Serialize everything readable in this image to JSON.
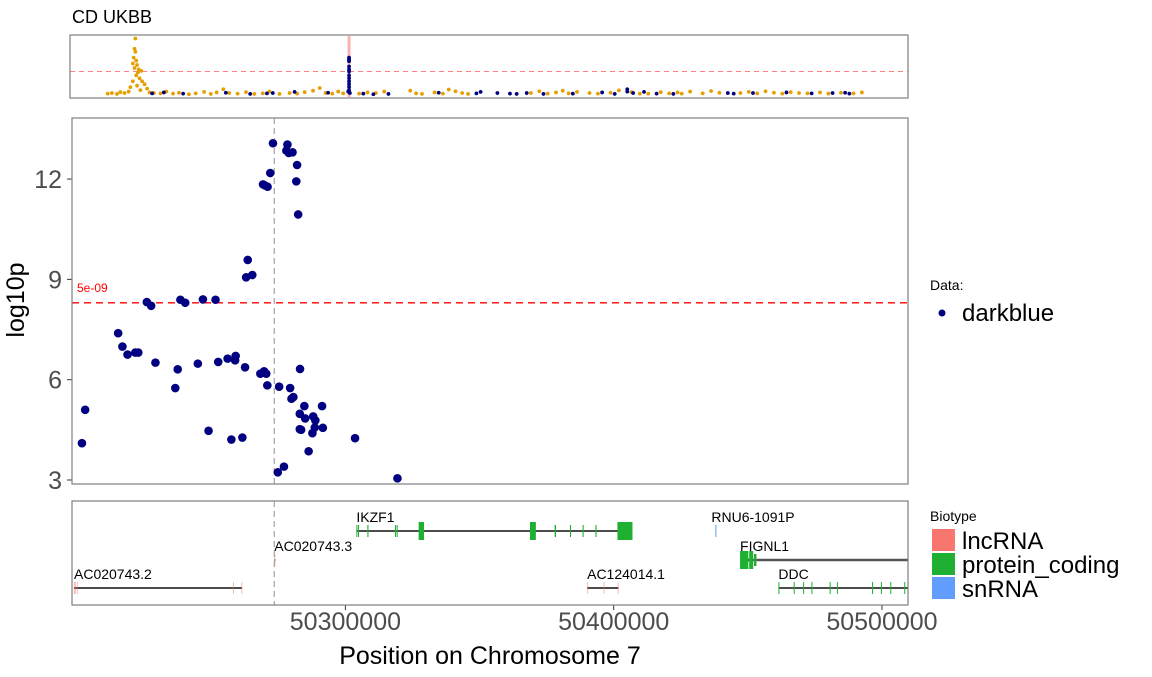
{
  "chart_data": [
    {
      "type": "scatter",
      "panel": "overview",
      "title": "CD UKBB",
      "xlabel": "",
      "ylabel": "",
      "x_units": "relative position index (0-100)",
      "xlim": [
        0,
        100
      ],
      "ylim": [
        0,
        20
      ],
      "threshold": 8.3,
      "highlight_x": 33.3,
      "series": [
        {
          "name": "orange",
          "color": "#E69F00",
          "points": [
            [
              7.8,
              19.5
            ],
            [
              7.7,
              16
            ],
            [
              7.8,
              15
            ],
            [
              7.6,
              13
            ],
            [
              7.9,
              12
            ],
            [
              7.5,
              11
            ],
            [
              8.0,
              10.5
            ],
            [
              7.7,
              9.5
            ],
            [
              8.2,
              9
            ],
            [
              8.5,
              8.5
            ],
            [
              8.1,
              8
            ],
            [
              7.9,
              7
            ],
            [
              8.3,
              6
            ],
            [
              8.6,
              5
            ],
            [
              7.5,
              5
            ],
            [
              8.9,
              4
            ],
            [
              8.0,
              3.5
            ],
            [
              7.2,
              3
            ],
            [
              9.2,
              2.5
            ],
            [
              8.4,
              2
            ],
            [
              7.0,
              1.5
            ],
            [
              6.5,
              1
            ],
            [
              9.5,
              1.2
            ],
            [
              10,
              1
            ],
            [
              4.5,
              0.8
            ],
            [
              5,
              1
            ],
            [
              5.6,
              0.7
            ],
            [
              6,
              1.3
            ],
            [
              10.8,
              0.9
            ],
            [
              11.5,
              1.5
            ],
            [
              12.3,
              0.8
            ],
            [
              13,
              1.1
            ],
            [
              14.2,
              0.6
            ],
            [
              15,
              0.9
            ],
            [
              16,
              1.4
            ],
            [
              16.8,
              0.7
            ],
            [
              17.5,
              1.2
            ],
            [
              18.3,
              2.3
            ],
            [
              19,
              1
            ],
            [
              20,
              0.8
            ],
            [
              21,
              1.3
            ],
            [
              22,
              0.7
            ],
            [
              23,
              0.9
            ],
            [
              23.8,
              1.5
            ],
            [
              25,
              0.7
            ],
            [
              26.2,
              1
            ],
            [
              27.1,
              0.8
            ],
            [
              28,
              1.3
            ],
            [
              29,
              1.8
            ],
            [
              29.8,
              2.7
            ],
            [
              30.5,
              1
            ],
            [
              31.3,
              0.8
            ],
            [
              32,
              1.5
            ],
            [
              32.6,
              0.9
            ],
            [
              34.5,
              0.8
            ],
            [
              35.5,
              1.2
            ],
            [
              36.5,
              1
            ],
            [
              37.5,
              1.5
            ],
            [
              40.6,
              1.8
            ],
            [
              41.3,
              0.9
            ],
            [
              42,
              0.7
            ],
            [
              43.5,
              1.2
            ],
            [
              44.5,
              0.8
            ],
            [
              45.2,
              2.2
            ],
            [
              46,
              1.6
            ],
            [
              46.8,
              1
            ],
            [
              47.5,
              0.7
            ],
            [
              55,
              1
            ],
            [
              56,
              1.6
            ],
            [
              57,
              0.8
            ],
            [
              58,
              1.2
            ],
            [
              58.8,
              1.8
            ],
            [
              59.5,
              0.9
            ],
            [
              60.5,
              1.4
            ],
            [
              62,
              1
            ],
            [
              63,
              0.8
            ],
            [
              64.5,
              1.1
            ],
            [
              65.5,
              1.9
            ],
            [
              67,
              1.3
            ],
            [
              68,
              0.8
            ],
            [
              69,
              0.8
            ],
            [
              70.5,
              1.3
            ],
            [
              71.5,
              0.9
            ],
            [
              72.5,
              1.2
            ],
            [
              73,
              0.8
            ],
            [
              74,
              1.5
            ],
            [
              75.5,
              0.9
            ],
            [
              76.5,
              1.7
            ],
            [
              77.5,
              1.1
            ],
            [
              80,
              1
            ],
            [
              81,
              1.4
            ],
            [
              82,
              0.9
            ],
            [
              83,
              1.6
            ],
            [
              84,
              1.1
            ],
            [
              85,
              0.8
            ],
            [
              86,
              1.3
            ],
            [
              87,
              1
            ],
            [
              88,
              0.9
            ],
            [
              89.5,
              1.2
            ],
            [
              90.5,
              0.8
            ],
            [
              92,
              1.1
            ],
            [
              93.5,
              0.9
            ],
            [
              94.5,
              1.2
            ]
          ]
        },
        {
          "name": "darkblue",
          "color": "#000080",
          "points": [
            [
              33.3,
              13
            ],
            [
              33.3,
              12.5
            ],
            [
              33.3,
              12
            ],
            [
              33.3,
              11.8
            ],
            [
              33.3,
              10
            ],
            [
              33.3,
              9
            ],
            [
              33.3,
              8.3
            ],
            [
              33.3,
              7
            ],
            [
              33.3,
              6
            ],
            [
              33.3,
              5
            ],
            [
              33.3,
              4
            ],
            [
              33.3,
              3
            ],
            [
              33.3,
              2
            ],
            [
              33.2,
              1.5
            ],
            [
              33.4,
              1
            ],
            [
              9.8,
              0.9
            ],
            [
              11.2,
              1.2
            ],
            [
              13.5,
              0.8
            ],
            [
              18.6,
              1.1
            ],
            [
              21.5,
              0.7
            ],
            [
              23.5,
              0.9
            ],
            [
              24.2,
              1
            ],
            [
              26.8,
              1.4
            ],
            [
              30.8,
              1.1
            ],
            [
              35,
              0.8
            ],
            [
              36.2,
              0.6
            ],
            [
              38,
              0.7
            ],
            [
              44,
              1.1
            ],
            [
              48.5,
              0.9
            ],
            [
              49,
              1.4
            ],
            [
              51,
              1
            ],
            [
              52.5,
              0.8
            ],
            [
              53.3,
              0.7
            ],
            [
              54.5,
              1
            ],
            [
              56.5,
              0.7
            ],
            [
              60,
              0.8
            ],
            [
              63.5,
              1.2
            ],
            [
              65,
              0.7
            ],
            [
              66.5,
              2.3
            ],
            [
              66.5,
              1.5
            ],
            [
              67.2,
              1
            ],
            [
              68.5,
              1.4
            ],
            [
              70,
              0.8
            ],
            [
              72,
              0.7
            ],
            [
              78.5,
              1
            ],
            [
              79.2,
              0.8
            ],
            [
              81.5,
              1
            ],
            [
              85.5,
              1.2
            ],
            [
              88.5,
              0.9
            ],
            [
              91,
              1
            ],
            [
              92.5,
              1.1
            ],
            [
              93,
              0.8
            ]
          ]
        }
      ]
    },
    {
      "type": "scatter",
      "panel": "main",
      "xlabel": "Position on Chromosome 7",
      "ylabel": "log10p",
      "xlim": [
        50198100,
        50509700
      ],
      "ylim": [
        2.88,
        13.8
      ],
      "yticks": [
        "3",
        "6",
        "9",
        "12"
      ],
      "ytick_values": [
        3,
        6,
        9,
        12
      ],
      "xticks": [
        "50300000",
        "50400000",
        "50500000"
      ],
      "xtick_values": [
        50300000,
        50400000,
        50500000
      ],
      "threshold": {
        "value": 8.3,
        "label": "5e-09",
        "color": "#FF0000"
      },
      "lead_snp_position": 50273500,
      "color": "#000080",
      "points": [
        [
          50273000,
          13.07
        ],
        [
          50278400,
          13.03
        ],
        [
          50278000,
          12.85
        ],
        [
          50278900,
          12.78
        ],
        [
          50280300,
          12.8
        ],
        [
          50282000,
          12.42
        ],
        [
          50272000,
          12.18
        ],
        [
          50269300,
          11.84
        ],
        [
          50270000,
          11.81
        ],
        [
          50271000,
          11.77
        ],
        [
          50281700,
          11.93
        ],
        [
          50282400,
          10.94
        ],
        [
          50263600,
          9.58
        ],
        [
          50263000,
          9.06
        ],
        [
          50265300,
          9.13
        ],
        [
          50226000,
          8.32
        ],
        [
          50227600,
          8.21
        ],
        [
          50238500,
          8.39
        ],
        [
          50240300,
          8.3
        ],
        [
          50246900,
          8.4
        ],
        [
          50251600,
          8.39
        ],
        [
          50215300,
          7.39
        ],
        [
          50216900,
          6.99
        ],
        [
          50218800,
          6.75
        ],
        [
          50221700,
          6.81
        ],
        [
          50222800,
          6.81
        ],
        [
          50229200,
          6.51
        ],
        [
          50237500,
          6.31
        ],
        [
          50245000,
          6.48
        ],
        [
          50252600,
          6.53
        ],
        [
          50256100,
          6.63
        ],
        [
          50259100,
          6.71
        ],
        [
          50258900,
          6.58
        ],
        [
          50262600,
          6.37
        ],
        [
          50268300,
          6.18
        ],
        [
          50269700,
          6.25
        ],
        [
          50270500,
          6.18
        ],
        [
          50270900,
          5.83
        ],
        [
          50275300,
          5.79
        ],
        [
          50279400,
          5.75
        ],
        [
          50279900,
          5.43
        ],
        [
          50280600,
          5.48
        ],
        [
          50283100,
          6.32
        ],
        [
          50284700,
          5.21
        ],
        [
          50291300,
          5.21
        ],
        [
          50283000,
          4.98
        ],
        [
          50285000,
          4.84
        ],
        [
          50288000,
          4.9
        ],
        [
          50288800,
          4.78
        ],
        [
          50288600,
          4.57
        ],
        [
          50291600,
          4.56
        ],
        [
          50283000,
          4.52
        ],
        [
          50283500,
          4.5
        ],
        [
          50287700,
          4.4
        ],
        [
          50236600,
          5.75
        ],
        [
          50203000,
          5.1
        ],
        [
          50201800,
          4.1
        ],
        [
          50249000,
          4.47
        ],
        [
          50257500,
          4.21
        ],
        [
          50261600,
          4.27
        ],
        [
          50286300,
          3.86
        ],
        [
          50303600,
          4.25
        ],
        [
          50277100,
          3.4
        ],
        [
          50274800,
          3.23
        ],
        [
          50319400,
          3.05
        ]
      ]
    }
  ],
  "legend_data": {
    "title": "Data:",
    "items": [
      {
        "label": "darkblue",
        "color": "#000080"
      }
    ]
  },
  "legend_biotype": {
    "title": "Biotype",
    "items": [
      {
        "label": "lncRNA",
        "color": "#F8766D"
      },
      {
        "label": "protein_coding",
        "color": "#1FB032"
      },
      {
        "label": "snRNA",
        "color": "#619CFF"
      }
    ]
  },
  "genes": [
    {
      "name": "AC020743.2",
      "biotype": "lncRNA",
      "row": 3,
      "start": 50198800,
      "end": 50261500,
      "exons": [
        [
          50198800,
          50199500
        ],
        [
          50199900,
          50200200
        ],
        [
          50258100,
          50258400
        ],
        [
          50261200,
          50261500
        ]
      ]
    },
    {
      "name": "AC020743.3",
      "biotype": "lncRNA",
      "row": 2,
      "start": 50273500,
      "end": 50273900,
      "exons": [
        [
          50273500,
          50273900
        ]
      ]
    },
    {
      "name": "IKZF1",
      "biotype": "protein_coding",
      "row": 1,
      "start": 50304100,
      "end": 50407000,
      "exons": [
        [
          50304100,
          50304400
        ],
        [
          50304700,
          50305000
        ],
        [
          50308200,
          50308600
        ],
        [
          50318500,
          50318800
        ],
        [
          50319100,
          50319400
        ],
        [
          50327300,
          50329300
        ],
        [
          50368800,
          50371000
        ],
        [
          50378000,
          50378500
        ],
        [
          50383700,
          50384100
        ],
        [
          50388400,
          50388800
        ],
        [
          50393200,
          50393600
        ],
        [
          50401400,
          50407000
        ]
      ]
    },
    {
      "name": "RNU6-1091P",
      "biotype": "snRNA",
      "row": 1,
      "start": 50437900,
      "end": 50438100,
      "exons": [
        [
          50437900,
          50438100
        ]
      ]
    },
    {
      "name": "FIGNL1",
      "biotype": "protein_coding",
      "row": 2,
      "start": 50447100,
      "end": 50515000,
      "exons": [
        [
          50447100,
          50450200
        ],
        [
          50450500,
          50452000
        ],
        [
          50452300,
          50453200
        ]
      ]
    },
    {
      "name": "AC124014.1",
      "biotype": "lncRNA",
      "row": 3,
      "start": 50390100,
      "end": 50401800,
      "exons": [
        [
          50390100,
          50390400
        ],
        [
          50396200,
          50396600
        ],
        [
          50401500,
          50401800
        ]
      ]
    },
    {
      "name": "DDC",
      "biotype": "protein_coding",
      "row": 3,
      "start": 50461400,
      "end": 50515000,
      "exons": [
        [
          50461400,
          50461700
        ],
        [
          50467100,
          50467400
        ],
        [
          50470600,
          50470900
        ],
        [
          50473700,
          50474000
        ],
        [
          50480500,
          50480800
        ],
        [
          50483200,
          50483500
        ],
        [
          50496300,
          50496600
        ],
        [
          50499600,
          50499900
        ],
        [
          50503100,
          50503400
        ],
        [
          50508300,
          50508600
        ]
      ]
    }
  ]
}
